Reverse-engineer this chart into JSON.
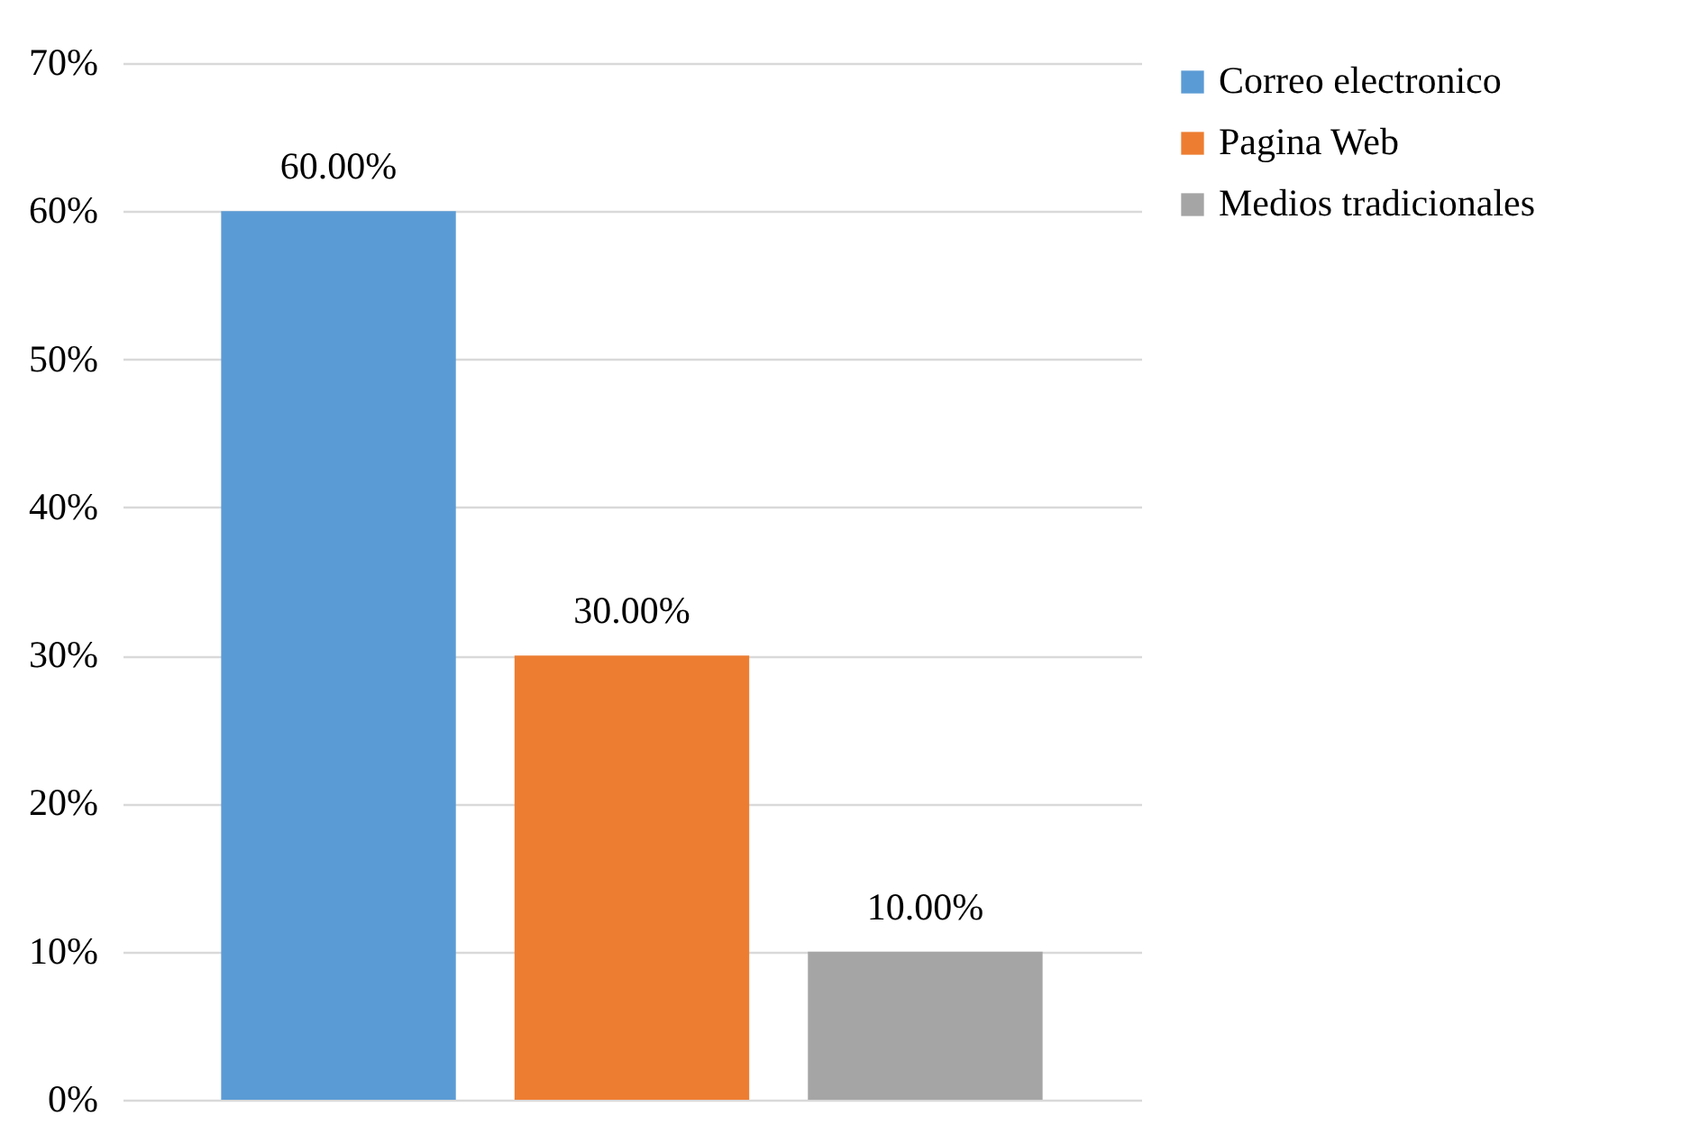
{
  "chart_data": {
    "type": "bar",
    "categories": [
      null
    ],
    "series": [
      {
        "name": "Correo electronico",
        "color": "#5b9bd5",
        "values": [
          60
        ],
        "value_labels": [
          "60.00%"
        ]
      },
      {
        "name": "Pagina Web",
        "color": "#ed7d31",
        "values": [
          30
        ],
        "value_labels": [
          "30.00%"
        ]
      },
      {
        "name": "Medios tradicionales",
        "color": "#a5a5a5",
        "values": [
          10
        ],
        "value_labels": [
          "10.00%"
        ]
      }
    ],
    "ylim": [
      0,
      70
    ],
    "yticks": [
      {
        "value": 0,
        "label": "0%"
      },
      {
        "value": 10,
        "label": "10%"
      },
      {
        "value": 20,
        "label": "20%"
      },
      {
        "value": 30,
        "label": "30%"
      },
      {
        "value": 40,
        "label": "40%"
      },
      {
        "value": 50,
        "label": "50%"
      },
      {
        "value": 60,
        "label": "60%"
      },
      {
        "value": 70,
        "label": "70%"
      }
    ],
    "grid": true,
    "legend": "right"
  }
}
